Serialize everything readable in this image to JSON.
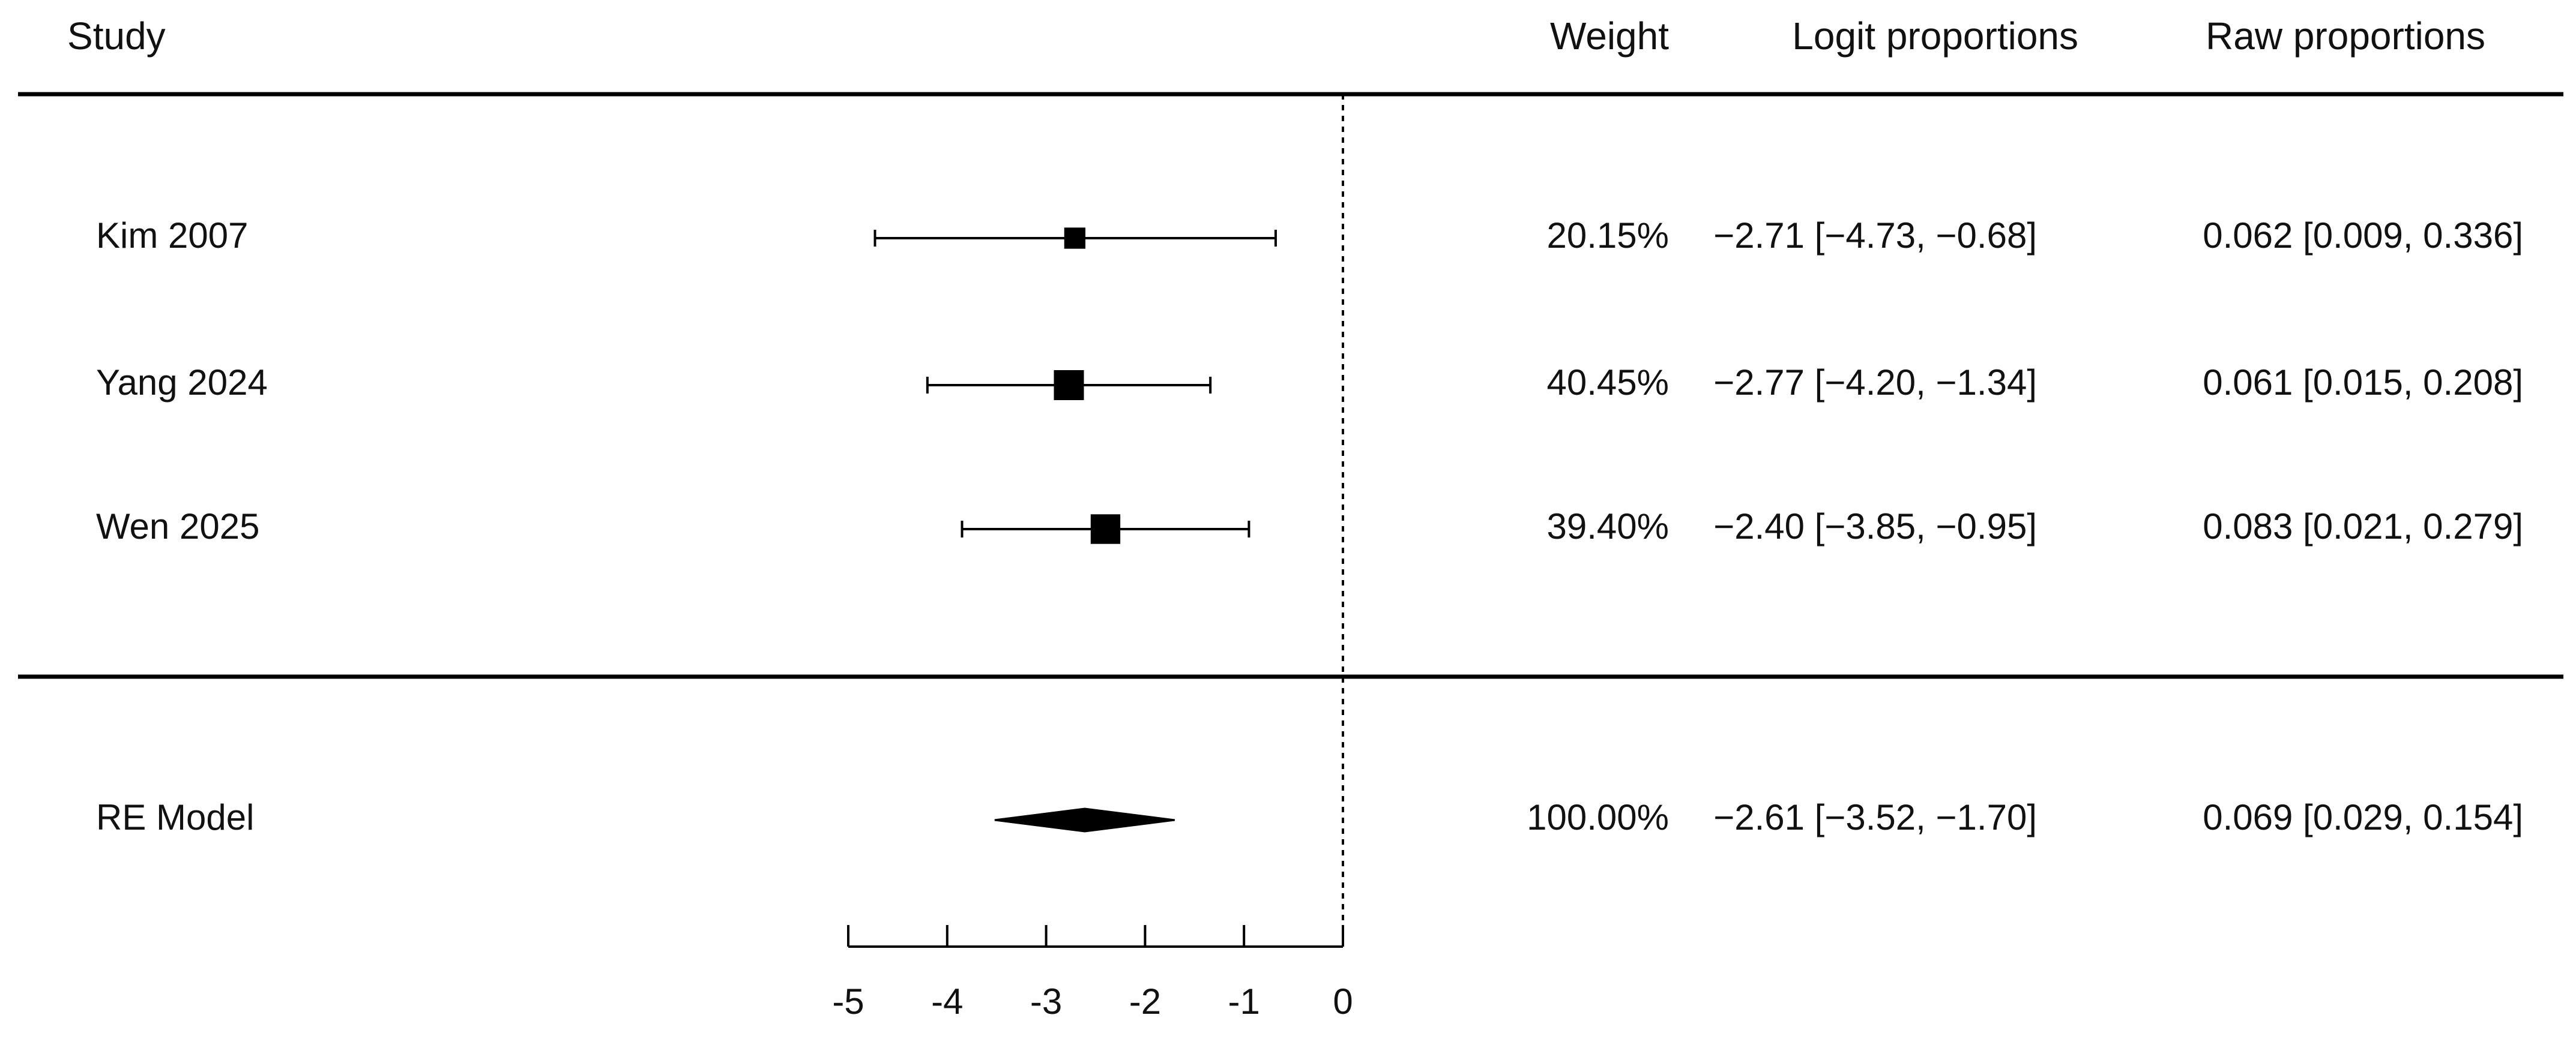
{
  "header": {
    "study": "Study",
    "weight": "Weight",
    "logit": "Logit proportions",
    "raw": "Raw proportions"
  },
  "chart_data": {
    "type": "forest",
    "xlim": [
      -5,
      0
    ],
    "xticks": [
      "-5",
      "-4",
      "-3",
      "-2",
      "-1",
      "0"
    ],
    "reference_line": 0,
    "studies": [
      {
        "label": "Kim 2007",
        "est": -2.71,
        "lo": -4.73,
        "hi": -0.68,
        "weight": 20.15,
        "weight_text": "20.15%",
        "logit_text": "−2.71 [−4.73, −0.68]",
        "raw_text": "0.062 [0.009, 0.336]"
      },
      {
        "label": "Yang 2024",
        "est": -2.77,
        "lo": -4.2,
        "hi": -1.34,
        "weight": 40.45,
        "weight_text": "40.45%",
        "logit_text": "−2.77 [−4.20, −1.34]",
        "raw_text": "0.061 [0.015, 0.208]"
      },
      {
        "label": "Wen 2025",
        "est": -2.4,
        "lo": -3.85,
        "hi": -0.95,
        "weight": 39.4,
        "weight_text": "39.40%",
        "logit_text": "−2.40 [−3.85, −0.95]",
        "raw_text": "0.083 [0.021, 0.279]"
      }
    ],
    "summary": {
      "label": "RE Model",
      "est": -2.61,
      "lo": -3.52,
      "hi": -1.7,
      "weight_text": "100.00%",
      "logit_text": "−2.61 [−3.52, −1.70]",
      "raw_text": "0.069 [0.029, 0.154]"
    }
  }
}
